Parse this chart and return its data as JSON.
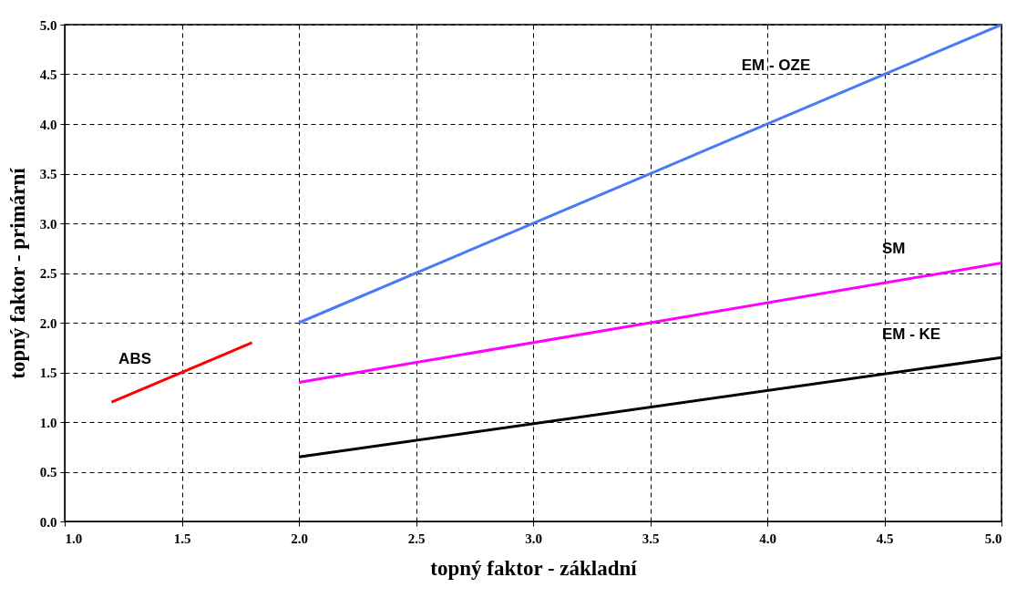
{
  "chart_data": {
    "type": "line",
    "xlabel": "topný faktor - základní",
    "ylabel": "topný faktor - primární",
    "xlim": [
      1,
      5
    ],
    "ylim": [
      0,
      5
    ],
    "xticks": [
      {
        "value": 1,
        "label": "1.0"
      },
      {
        "value": 1.5,
        "label": "1.5"
      },
      {
        "value": 2,
        "label": "2.0"
      },
      {
        "value": 2.5,
        "label": "2.5"
      },
      {
        "value": 3,
        "label": "3.0"
      },
      {
        "value": 3.5,
        "label": "3.5"
      },
      {
        "value": 4,
        "label": "4.0"
      },
      {
        "value": 4.5,
        "label": "4.5"
      },
      {
        "value": 5,
        "label": "5.0"
      }
    ],
    "yticks": [
      {
        "value": 0,
        "label": "0.0"
      },
      {
        "value": 0.5,
        "label": "0.5"
      },
      {
        "value": 1,
        "label": "1.0"
      },
      {
        "value": 1.5,
        "label": "1.5"
      },
      {
        "value": 2,
        "label": "2.0"
      },
      {
        "value": 2.5,
        "label": "2.5"
      },
      {
        "value": 3,
        "label": "3.0"
      },
      {
        "value": 3.5,
        "label": "3.5"
      },
      {
        "value": 4,
        "label": "4.0"
      },
      {
        "value": 4.5,
        "label": "4.5"
      },
      {
        "value": 5,
        "label": "5.0"
      }
    ],
    "grid": true,
    "line_style": "solid",
    "marker": "none",
    "series": [
      {
        "name": "ABS",
        "color": "#ff0000",
        "x": [
          1.2,
          1.8
        ],
        "values": [
          1.2,
          1.8
        ]
      },
      {
        "name": "EM - OZE",
        "color": "#4a7af5",
        "x": [
          2,
          5
        ],
        "values": [
          2,
          5
        ]
      },
      {
        "name": "SM",
        "color": "#ff00ff",
        "x": [
          2,
          5
        ],
        "values": [
          1.4,
          2.6
        ]
      },
      {
        "name": "EM - KE",
        "color": "#000000",
        "x": [
          2,
          5
        ],
        "values": [
          0.65,
          1.65
        ]
      }
    ]
  }
}
